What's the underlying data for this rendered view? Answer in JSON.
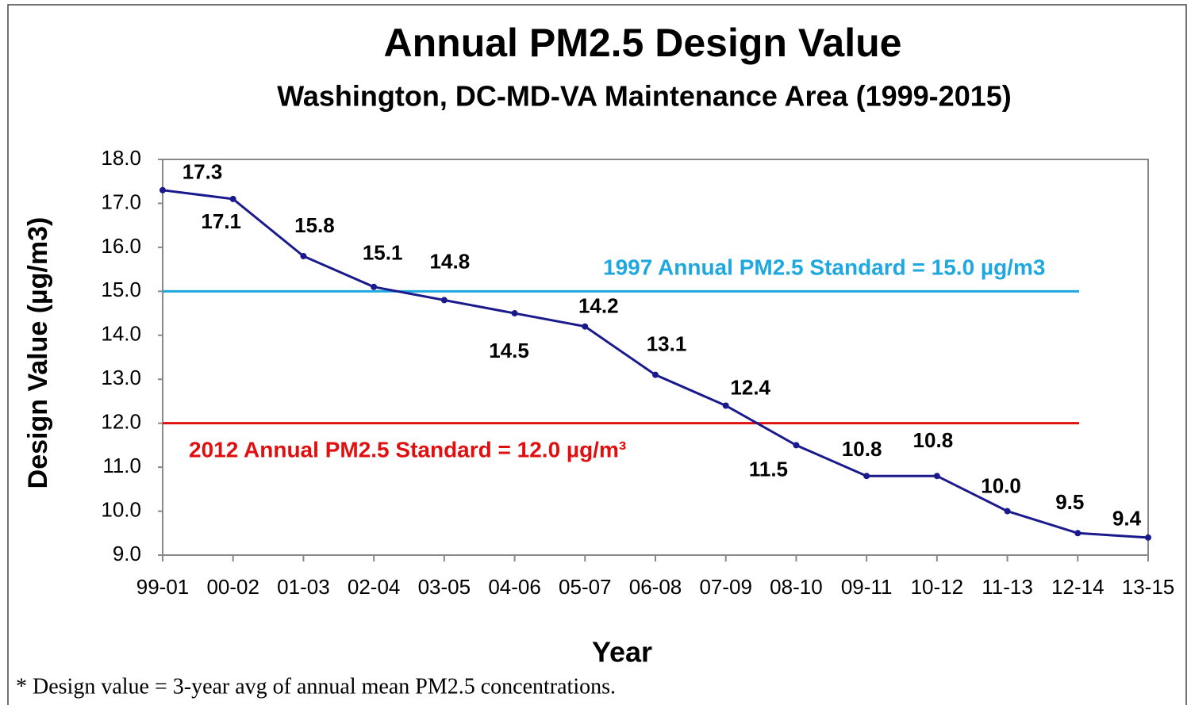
{
  "chart_data": {
    "type": "line",
    "title": "Annual PM2.5 Design Value",
    "subtitle": "Washington, DC-MD-VA Maintenance Area (1999-2015)",
    "x_label": "Year",
    "y_label": "Design Value (µg/m3)",
    "categories": [
      "99-01",
      "00-02",
      "01-03",
      "02-04",
      "03-05",
      "04-06",
      "05-07",
      "06-08",
      "07-09",
      "08-10",
      "09-11",
      "10-12",
      "11-13",
      "12-14",
      "13-15"
    ],
    "series": [
      {
        "name": "Design Value",
        "color": "#1a1a8c",
        "values": [
          17.3,
          17.1,
          15.8,
          15.1,
          14.8,
          14.5,
          14.2,
          13.1,
          12.4,
          11.5,
          10.8,
          10.8,
          10.0,
          9.5,
          9.4
        ],
        "value_labels": [
          "17.3",
          "17.1",
          "15.8",
          "15.1",
          "14.8",
          "14.5",
          "14.2",
          "13.1",
          "12.4",
          "11.5",
          "10.8",
          "10.8",
          "10.0",
          "9.5",
          "9.4"
        ]
      }
    ],
    "ylim": [
      9,
      18
    ],
    "yticks": [
      {
        "value": 9,
        "label": "9.0"
      },
      {
        "value": 10,
        "label": "10.0"
      },
      {
        "value": 11,
        "label": "11.0"
      },
      {
        "value": 12,
        "label": "12.0"
      },
      {
        "value": 13,
        "label": "13.0"
      },
      {
        "value": 14,
        "label": "14.0"
      },
      {
        "value": 15,
        "label": "15.0"
      },
      {
        "value": 16,
        "label": "16.0"
      },
      {
        "value": 17,
        "label": "17.0"
      },
      {
        "value": 18,
        "label": "18.0"
      }
    ],
    "grid": false,
    "reference_lines": [
      {
        "value": 15,
        "color": "#1fa8e0",
        "label": "1997 Annual PM2.5 Standard = 15.0 µg/m3"
      },
      {
        "value": 12,
        "color": "#e01010",
        "label": "2012 Annual PM2.5 Standard = 12.0 µg/m³"
      }
    ],
    "footnote": "* Design value = 3-year avg of annual  mean PM2.5 concentrations."
  }
}
